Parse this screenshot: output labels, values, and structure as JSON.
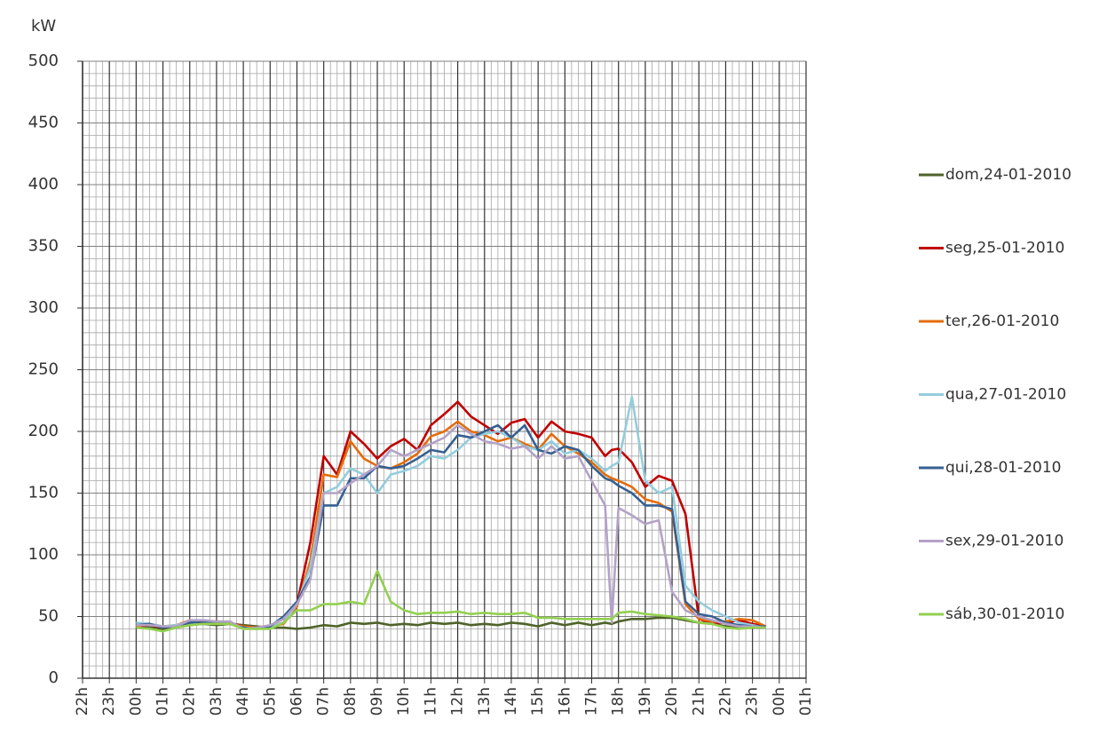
{
  "chart_data": {
    "type": "line",
    "y_label": "kW",
    "x": [
      0,
      0.5,
      1,
      1.5,
      2,
      2.5,
      3,
      3.5,
      4,
      4.5,
      5,
      5.5,
      6,
      6.5,
      7,
      7.5,
      8,
      8.5,
      9,
      9.5,
      10,
      10.5,
      11,
      11.5,
      12,
      12.5,
      13,
      13.5,
      14,
      14.5,
      15,
      15.5,
      16,
      16.5,
      17,
      17.5,
      17.75,
      18,
      18.5,
      19,
      19.5,
      20,
      20.5,
      21,
      21.5,
      22,
      22.5,
      23,
      23.5
    ],
    "xlim": [
      -2,
      25
    ],
    "xticks": [
      {
        "value": -2,
        "label": "22h"
      },
      {
        "value": -1,
        "label": "23h"
      },
      {
        "value": 0,
        "label": "00h"
      },
      {
        "value": 1,
        "label": "01h"
      },
      {
        "value": 2,
        "label": "02h"
      },
      {
        "value": 3,
        "label": "03h"
      },
      {
        "value": 4,
        "label": "04h"
      },
      {
        "value": 5,
        "label": "05h"
      },
      {
        "value": 6,
        "label": "06h"
      },
      {
        "value": 7,
        "label": "07h"
      },
      {
        "value": 8,
        "label": "08h"
      },
      {
        "value": 9,
        "label": "09h"
      },
      {
        "value": 10,
        "label": "10h"
      },
      {
        "value": 11,
        "label": "11h"
      },
      {
        "value": 12,
        "label": "12h"
      },
      {
        "value": 13,
        "label": "13h"
      },
      {
        "value": 14,
        "label": "14h"
      },
      {
        "value": 15,
        "label": "15h"
      },
      {
        "value": 16,
        "label": "16h"
      },
      {
        "value": 17,
        "label": "17h"
      },
      {
        "value": 18,
        "label": "18h"
      },
      {
        "value": 19,
        "label": "19h"
      },
      {
        "value": 20,
        "label": "20h"
      },
      {
        "value": 21,
        "label": "21h"
      },
      {
        "value": 22,
        "label": "22h"
      },
      {
        "value": 23,
        "label": "23h"
      },
      {
        "value": 24,
        "label": "00h"
      },
      {
        "value": 25,
        "label": "01h"
      }
    ],
    "ylim": [
      0,
      500
    ],
    "yticks": [
      0,
      50,
      100,
      150,
      200,
      250,
      300,
      350,
      400,
      450,
      500
    ],
    "grid": true,
    "legend": "right",
    "series": [
      {
        "name": "dom,24-01-2010",
        "color": "#4f6228",
        "values": [
          42,
          41,
          40,
          41,
          43,
          44,
          43,
          44,
          43,
          42,
          41,
          41,
          40,
          41,
          43,
          42,
          45,
          44,
          45,
          43,
          44,
          43,
          45,
          44,
          45,
          43,
          44,
          43,
          45,
          44,
          42,
          45,
          43,
          45,
          43,
          45,
          44,
          46,
          48,
          48,
          49,
          49,
          47,
          45,
          44,
          42,
          41,
          41,
          41
        ]
      },
      {
        "name": "seg,25-01-2010",
        "color": "#c00000",
        "values": [
          42,
          43,
          41,
          42,
          46,
          45,
          46,
          45,
          42,
          41,
          42,
          45,
          60,
          110,
          180,
          165,
          200,
          190,
          178,
          188,
          194,
          185,
          205,
          214,
          224,
          212,
          205,
          198,
          207,
          210,
          195,
          208,
          200,
          198,
          195,
          180,
          185,
          186,
          175,
          155,
          164,
          160,
          133,
          48,
          44,
          45,
          47,
          44,
          42
        ]
      },
      {
        "name": "ter,26-01-2010",
        "color": "#e46c0a",
        "values": [
          42,
          44,
          42,
          43,
          47,
          46,
          45,
          44,
          42,
          41,
          42,
          44,
          58,
          95,
          165,
          163,
          192,
          178,
          172,
          170,
          175,
          182,
          196,
          200,
          208,
          200,
          197,
          192,
          195,
          190,
          185,
          198,
          188,
          182,
          175,
          165,
          162,
          160,
          155,
          145,
          142,
          135,
          60,
          48,
          46,
          46,
          48,
          47,
          42
        ]
      },
      {
        "name": "qua,27-01-2010",
        "color": "#93cddd",
        "values": [
          45,
          44,
          42,
          43,
          46,
          47,
          45,
          44,
          41,
          40,
          42,
          45,
          60,
          90,
          150,
          155,
          170,
          165,
          150,
          165,
          168,
          172,
          180,
          178,
          185,
          195,
          198,
          200,
          195,
          188,
          185,
          192,
          182,
          185,
          178,
          168,
          172,
          175,
          228,
          160,
          150,
          155,
          75,
          62,
          55,
          50,
          45,
          43,
          41
        ]
      },
      {
        "name": "qui,28-01-2010",
        "color": "#366092",
        "values": [
          43,
          44,
          41,
          42,
          45,
          46,
          45,
          44,
          41,
          40,
          42,
          50,
          62,
          82,
          140,
          140,
          162,
          162,
          172,
          170,
          172,
          178,
          185,
          183,
          197,
          195,
          200,
          205,
          195,
          205,
          185,
          182,
          188,
          185,
          172,
          162,
          160,
          156,
          150,
          140,
          140,
          137,
          62,
          52,
          50,
          45,
          43,
          42,
          42
        ]
      },
      {
        "name": "sex,29-01-2010",
        "color": "#b3a2c7",
        "values": [
          43,
          43,
          42,
          42,
          47,
          47,
          46,
          46,
          40,
          41,
          43,
          48,
          60,
          80,
          150,
          150,
          158,
          165,
          172,
          185,
          180,
          185,
          190,
          195,
          205,
          198,
          192,
          190,
          186,
          188,
          178,
          188,
          178,
          180,
          160,
          140,
          45,
          138,
          132,
          125,
          128,
          70,
          55,
          50,
          47,
          44,
          42,
          42,
          41
        ]
      },
      {
        "name": "sáb,30-01-2010",
        "color": "#92d050",
        "values": [
          41,
          40,
          38,
          41,
          43,
          44,
          44,
          44,
          40,
          40,
          40,
          45,
          55,
          55,
          60,
          60,
          62,
          60,
          87,
          62,
          55,
          52,
          53,
          53,
          54,
          52,
          53,
          52,
          52,
          53,
          49,
          49,
          48,
          48,
          48,
          48,
          48,
          53,
          54,
          52,
          51,
          50,
          48,
          45,
          44,
          41,
          40,
          41,
          41
        ]
      }
    ]
  }
}
